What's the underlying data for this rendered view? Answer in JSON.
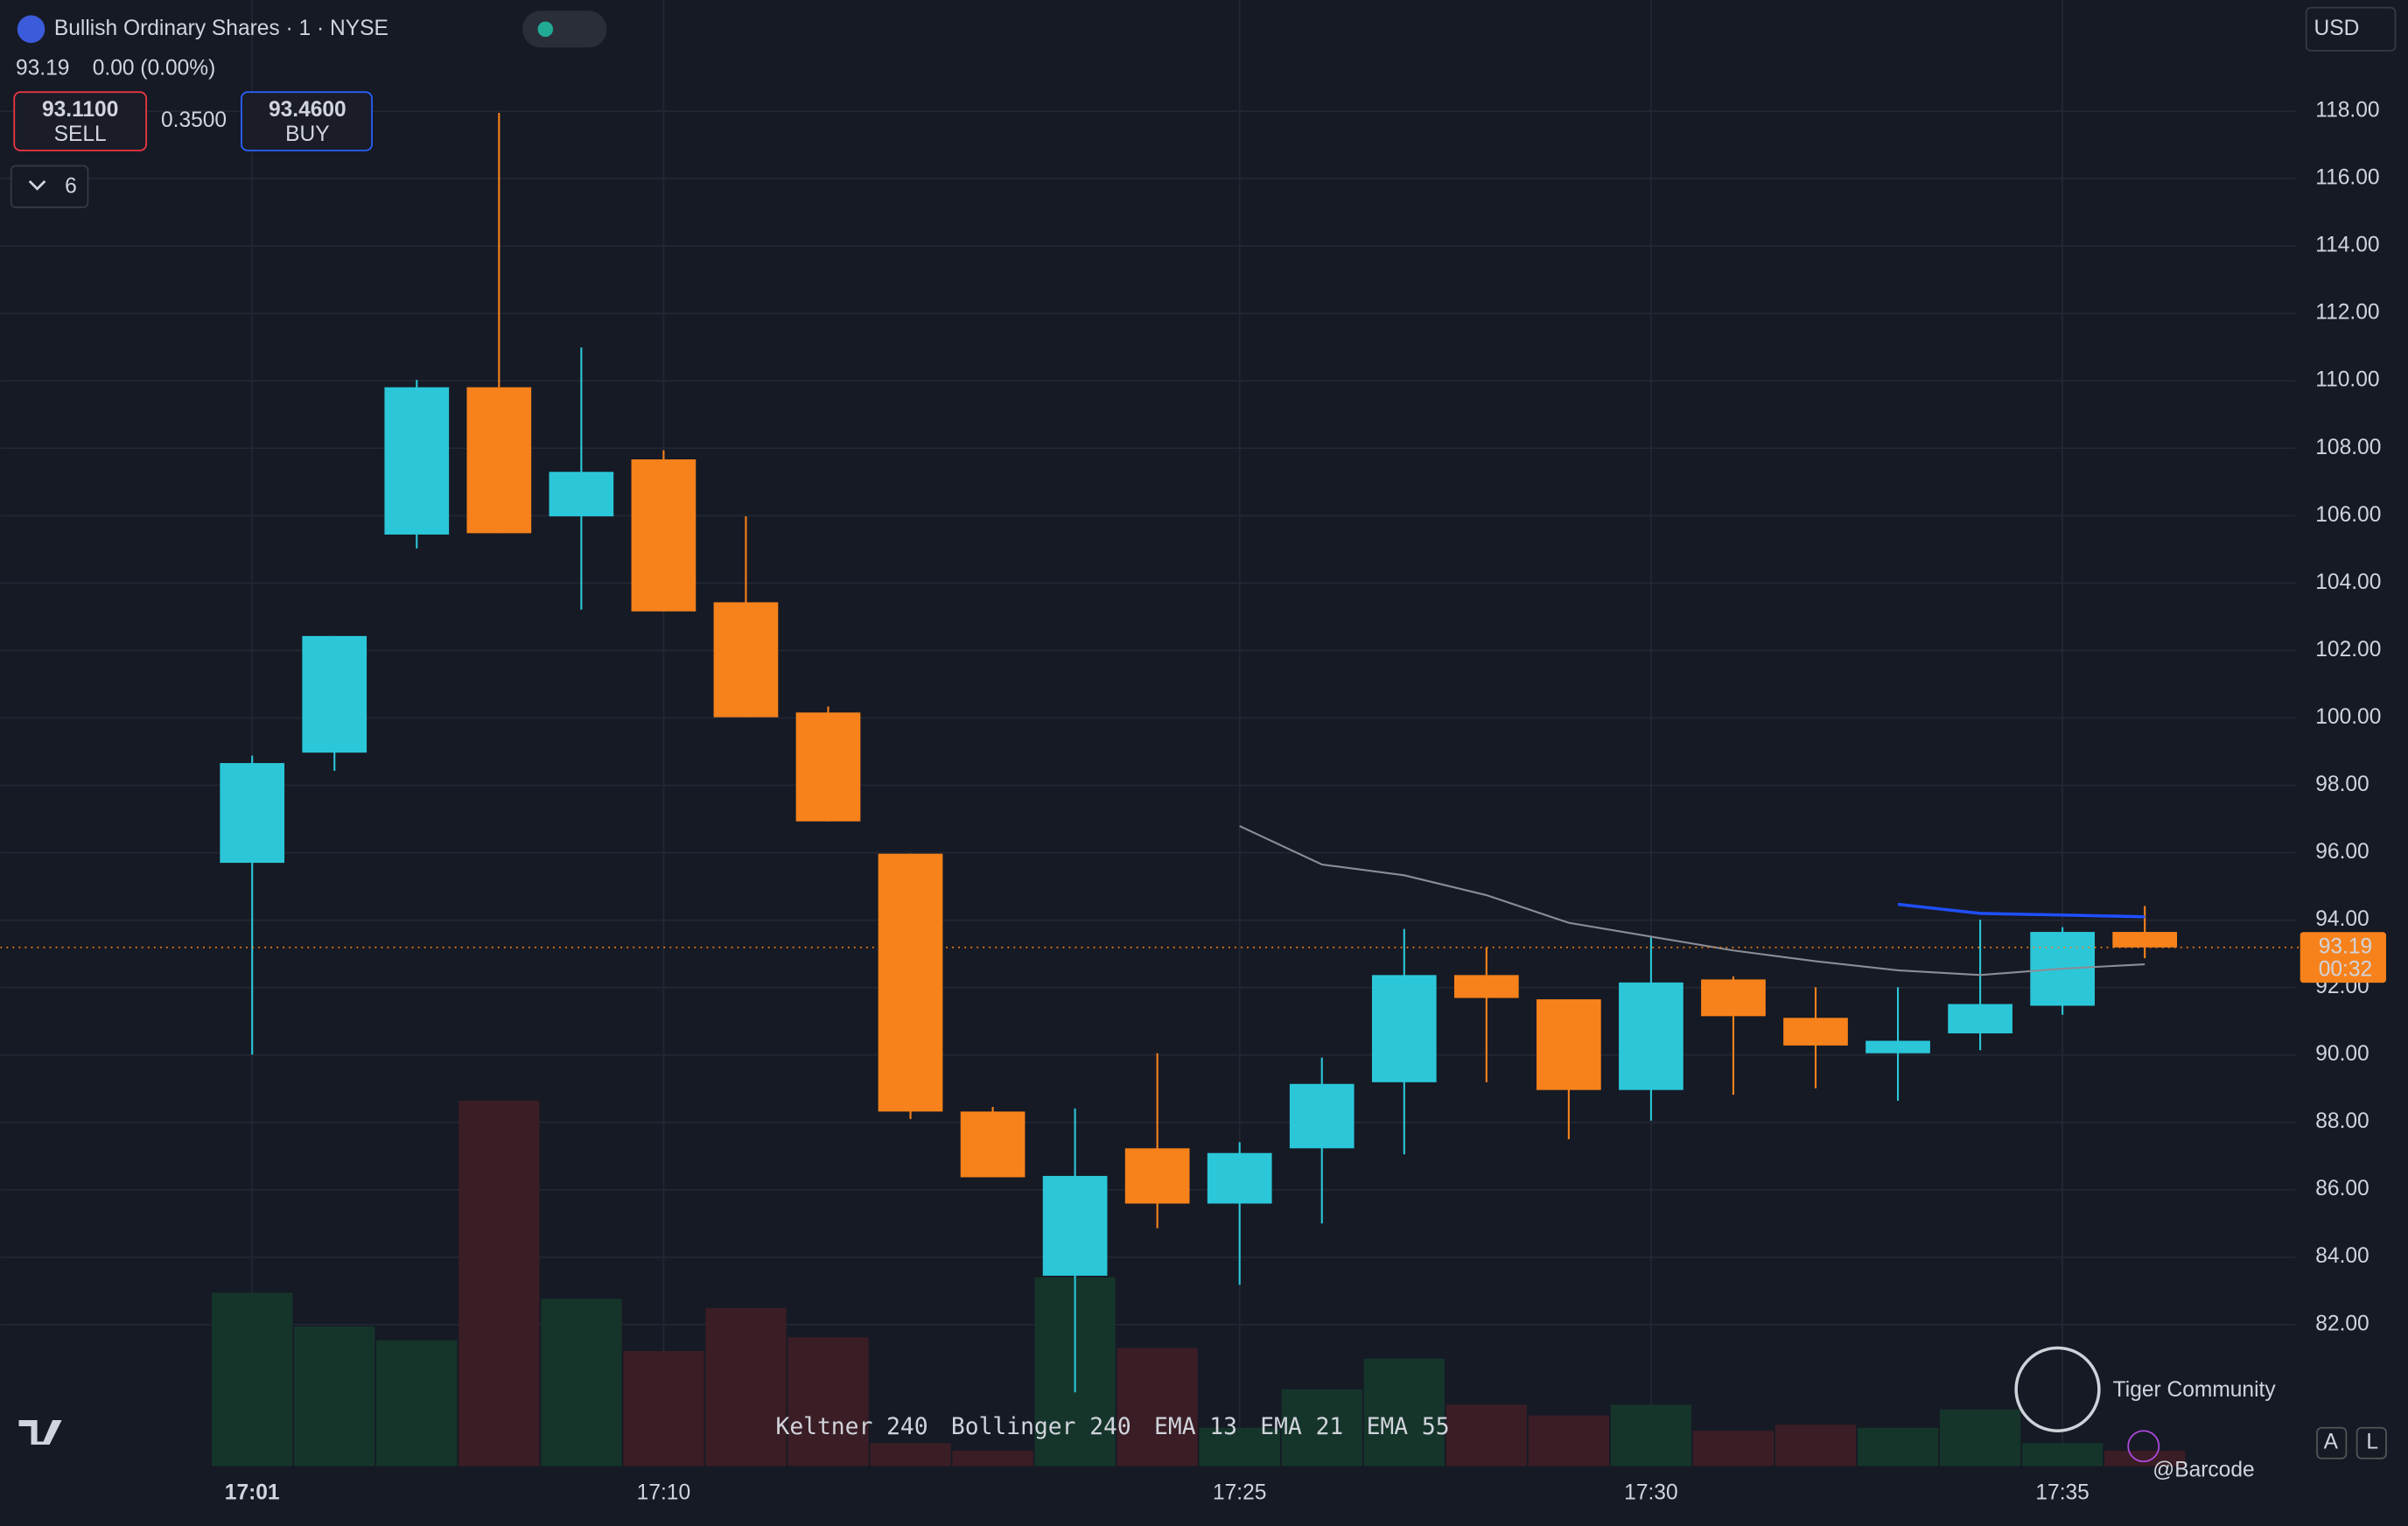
{
  "header": {
    "title": "Bullish Ordinary Shares · 1 · NYSE",
    "last": "93.19",
    "change": "0.00 (0.00%)",
    "sell_price": "93.1100",
    "sell": "SELL",
    "spread": "0.3500",
    "buy_price": "93.4600",
    "buy": "BUY",
    "layers": "6",
    "currency": "USD",
    "price_tag": "93.19",
    "countdown": "00:32"
  },
  "indicators": [
    {
      "name": "Keltner",
      "param": 240,
      "color": "#e040b0"
    },
    {
      "name": "Bollinger",
      "param": 240,
      "color": "#6a6d78"
    },
    {
      "name": "EMA",
      "param": 13,
      "color": "#6a6d78"
    },
    {
      "name": "EMA",
      "param": 21,
      "color": "#2962ff"
    },
    {
      "name": "EMA",
      "param": 55,
      "color": "#f7821b"
    }
  ],
  "watermark": {
    "brand": "Tiger Community",
    "user": "@Barcode",
    "btn_a": "A",
    "btn_l": "L"
  },
  "chart_data": {
    "type": "candlestick",
    "categories": [
      "17:01",
      null,
      null,
      null,
      null,
      "17:10",
      null,
      null,
      null,
      null,
      null,
      null,
      "17:25",
      null,
      null,
      null,
      null,
      "17:30",
      null,
      null,
      null,
      null,
      "17:35",
      null
    ],
    "open": [
      95.7,
      98.97,
      105.44,
      109.81,
      105.98,
      107.67,
      103.43,
      100.16,
      95.97,
      88.32,
      83.45,
      87.23,
      85.59,
      87.23,
      89.19,
      92.37,
      91.65,
      88.96,
      92.24,
      91.1,
      90.05,
      90.64,
      91.46,
      93.65
    ],
    "high": [
      98.88,
      102.43,
      110.03,
      117.95,
      110.99,
      107.94,
      105.98,
      100.34,
      95.97,
      88.46,
      88.41,
      90.05,
      87.41,
      89.92,
      93.74,
      93.19,
      91.65,
      93.51,
      92.33,
      92.01,
      92.01,
      94.01,
      93.79,
      94.42
    ],
    "low": [
      90.01,
      98.43,
      105.03,
      105.48,
      103.21,
      103.16,
      100.02,
      96.93,
      88.1,
      86.37,
      79.99,
      84.86,
      83.18,
      85.0,
      87.05,
      89.19,
      87.5,
      88.05,
      88.82,
      89.01,
      88.64,
      90.14,
      91.19,
      92.87
    ],
    "close": [
      98.66,
      102.43,
      109.81,
      105.48,
      107.3,
      103.16,
      100.02,
      96.93,
      88.32,
      86.37,
      86.41,
      85.59,
      87.09,
      89.14,
      92.37,
      91.69,
      88.96,
      92.15,
      91.15,
      90.28,
      90.42,
      91.51,
      93.65,
      93.19
    ],
    "volume": [
      113,
      91,
      82,
      238,
      109,
      75,
      103,
      84,
      15,
      10,
      123,
      77,
      25,
      50,
      70,
      40,
      33,
      40,
      23,
      27,
      25,
      37,
      15,
      10
    ],
    "up_color": "#2bc7d9",
    "down_color": "#f7821b",
    "vol_up_color": "#15352b",
    "vol_down_color": "#3a1d25",
    "lines": [
      {
        "color": "#8a8d96",
        "values": [
          null,
          null,
          null,
          null,
          null,
          null,
          null,
          null,
          null,
          null,
          null,
          null,
          96.79,
          95.65,
          95.33,
          94.74,
          93.92,
          93.51,
          93.1,
          92.78,
          92.51,
          92.37,
          92.56,
          92.69
        ]
      },
      {
        "color": "#1f4fff",
        "values": [
          null,
          null,
          null,
          null,
          null,
          null,
          null,
          null,
          null,
          null,
          null,
          null,
          null,
          null,
          null,
          null,
          null,
          null,
          null,
          null,
          94.47,
          94.2,
          94.15,
          94.1
        ]
      }
    ],
    "last_price": 93.19,
    "ylim": [
      77.8,
      121.3
    ],
    "yticks": [
      {
        "value": 82,
        "label": "82.00"
      },
      {
        "value": 84,
        "label": "84.00"
      },
      {
        "value": 86,
        "label": "86.00"
      },
      {
        "value": 88,
        "label": "88.00"
      },
      {
        "value": 90,
        "label": "90.00"
      },
      {
        "value": 92,
        "label": "92.00"
      },
      {
        "value": 94,
        "label": "94.00"
      },
      {
        "value": 96,
        "label": "96.00"
      },
      {
        "value": 98,
        "label": "98.00"
      },
      {
        "value": 100,
        "label": "100.00"
      },
      {
        "value": 102,
        "label": "102.00"
      },
      {
        "value": 104,
        "label": "104.00"
      },
      {
        "value": 106,
        "label": "106.00"
      },
      {
        "value": 108,
        "label": "108.00"
      },
      {
        "value": 110,
        "label": "110.00"
      },
      {
        "value": 112,
        "label": "112.00"
      },
      {
        "value": 114,
        "label": "114.00"
      },
      {
        "value": 116,
        "label": "116.00"
      },
      {
        "value": 118,
        "label": "118.00"
      }
    ],
    "grid": true
  }
}
